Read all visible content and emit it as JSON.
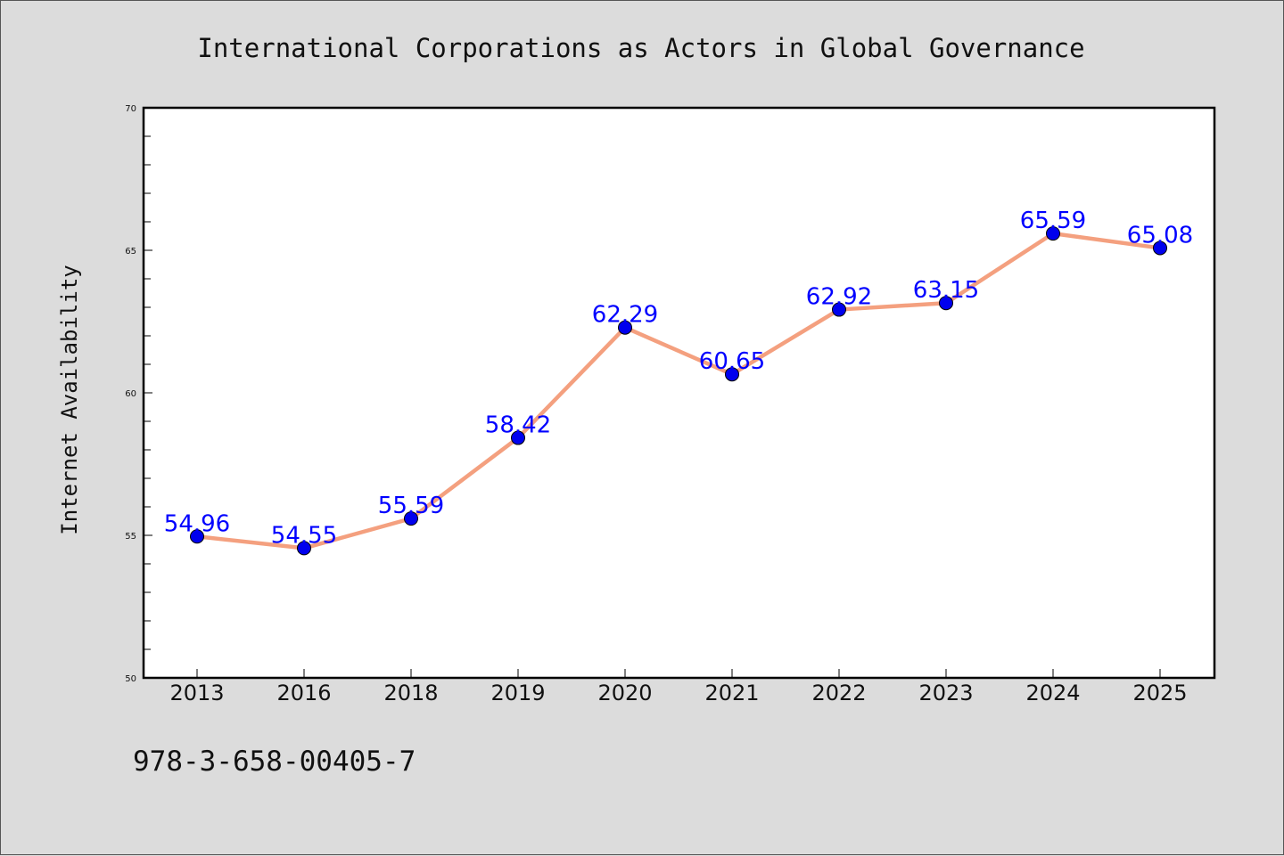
{
  "chart_data": {
    "type": "line",
    "title": "International Corporations as Actors in Global Governance",
    "xlabel": "",
    "ylabel": "Internet Availability",
    "categories": [
      "2013",
      "2016",
      "2018",
      "2019",
      "2020",
      "2021",
      "2022",
      "2023",
      "2024",
      "2025"
    ],
    "series": [
      {
        "values": [
          54.96,
          54.55,
          55.59,
          58.42,
          62.29,
          60.65,
          62.92,
          63.15,
          65.59,
          65.08
        ],
        "data_labels": [
          "54.96",
          "54.55",
          "55.59",
          "58.42",
          "62.29",
          "60.65",
          "62.92",
          "63.15",
          "65.59",
          "65.08"
        ]
      }
    ],
    "ylim": [
      50,
      70
    ],
    "yticks": [
      "50",
      "55",
      "60",
      "65",
      "70"
    ],
    "grid": false,
    "legend": "none",
    "colors": {
      "line": "#f4a07f",
      "marker": "#0000ee",
      "label": "#0000ff",
      "background": "#dcdcdc",
      "plot_background": "#ffffff"
    }
  },
  "footer": {
    "isbn": "978-3-658-00405-7"
  }
}
